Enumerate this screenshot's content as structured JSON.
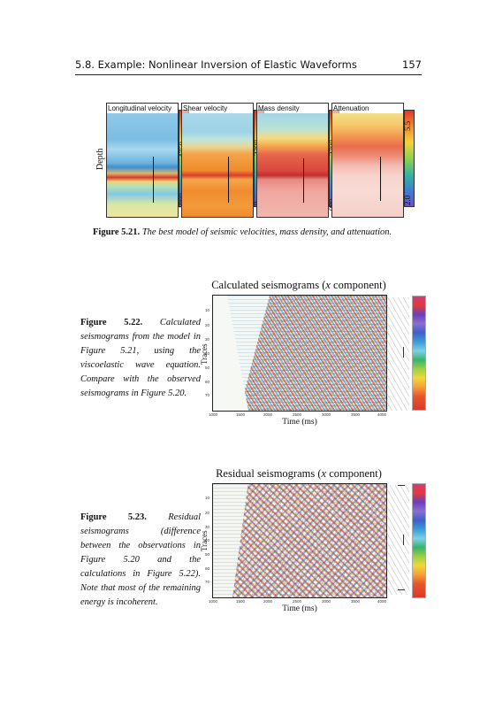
{
  "running_head": {
    "title": "5.8.  Example:  Nonlinear Inversion of Elastic Waveforms",
    "page": "157"
  },
  "fig521": {
    "panels": [
      {
        "title": "Longitudinal velocity",
        "scale_min": "1000",
        "scale_max": "4750"
      },
      {
        "title": "Shear velocity",
        "scale_min": "0",
        "scale_max": "2300"
      },
      {
        "title": "Mass density",
        "scale_min": "980",
        "scale_max": "2700"
      },
      {
        "title": "Attenuation",
        "scale_min": "2.0",
        "scale_max": "5.5"
      }
    ],
    "depth_label": "Depth",
    "caption_label": "Figure 5.21.",
    "caption_text": " The best model of seismic velocities, mass density, and attenuation."
  },
  "fig522": {
    "caption_label": "Figure 5.22.",
    "caption_text": " Calculated seismograms from the model in Figure 5.21, using the viscoelastic wave equation. Compare with the observed seismograms in Figure 5.20.",
    "title_prefix": "Calculated seismograms (",
    "title_var": "x",
    "title_suffix": " component)",
    "ylabel": "Traces",
    "xlabel": "Time (ms)",
    "yticks": [
      "10",
      "20",
      "30",
      "40",
      "50",
      "60",
      "70"
    ],
    "xticks": [
      "1000",
      "1500",
      "2000",
      "2500",
      "3000",
      "3500",
      "4000"
    ]
  },
  "fig523": {
    "caption_label": "Figure 5.23.",
    "caption_text": " Residual seismograms (difference between the observations in Figure 5.20 and the calculations in Figure 5.22). Note that most of the remaining energy is incoherent.",
    "title_prefix": "Residual seismograms (",
    "title_var": "x",
    "title_suffix": " component)",
    "ylabel": "Traces",
    "xlabel": "Time (ms)",
    "yticks": [
      "10",
      "20",
      "30",
      "40",
      "50",
      "60",
      "70"
    ],
    "xticks": [
      "1000",
      "1500",
      "2000",
      "2500",
      "3000",
      "3500",
      "4000"
    ]
  }
}
